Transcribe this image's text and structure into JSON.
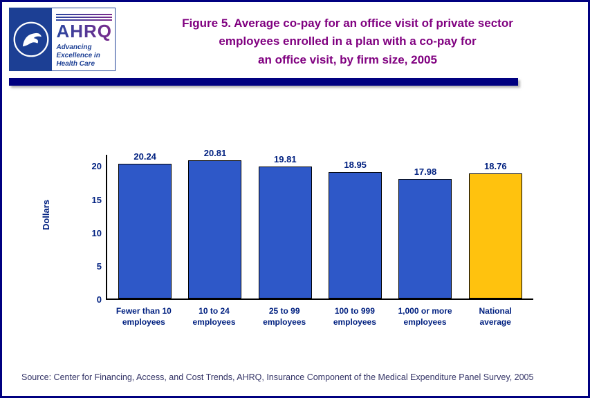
{
  "window": {
    "border_color": "#000080",
    "background": "#ffffff"
  },
  "logo": {
    "ahrq_text": "AHRQ",
    "tagline": [
      "Advancing",
      "Excellence in",
      "Health Care"
    ],
    "hhs_color": "#1c3f94"
  },
  "header": {
    "title_lines": [
      "Figure 5. Average co-pay for an office visit of private sector",
      "employees enrolled in a plan with a co-pay for",
      "an office visit, by firm size, 2005"
    ],
    "title_color": "#800080"
  },
  "chart_data": {
    "type": "bar",
    "title": "Figure 5. Average co-pay for an office visit of private sector employees enrolled in a plan with a co-pay for an office visit, by firm size, 2005",
    "categories": [
      "Fewer than 10\nemployees",
      "10 to 24\nemployees",
      "25 to 99\nemployees",
      "100 to 999\nemployees",
      "1,000 or more\nemployees",
      "National\naverage"
    ],
    "values": [
      20.24,
      20.81,
      19.81,
      18.95,
      17.98,
      18.76
    ],
    "value_labels": [
      "20.24",
      "20.81",
      "19.81",
      "18.95",
      "17.98",
      "18.76"
    ],
    "xlabel": "",
    "ylabel": "Dollars",
    "yticks": [
      0,
      5,
      10,
      15,
      20
    ],
    "ylim": [
      0,
      21.8
    ],
    "grid": false,
    "legend": null,
    "bar_color": "#2e58c8",
    "highlight_color": "#ffc20e",
    "highlight_index": 5,
    "bar_border_color": "#000000"
  },
  "footer": {
    "source": "Source: Center for Financing, Access, and Cost Trends, AHRQ, Insurance Component of the Medical Expenditure Panel Survey, 2005"
  }
}
